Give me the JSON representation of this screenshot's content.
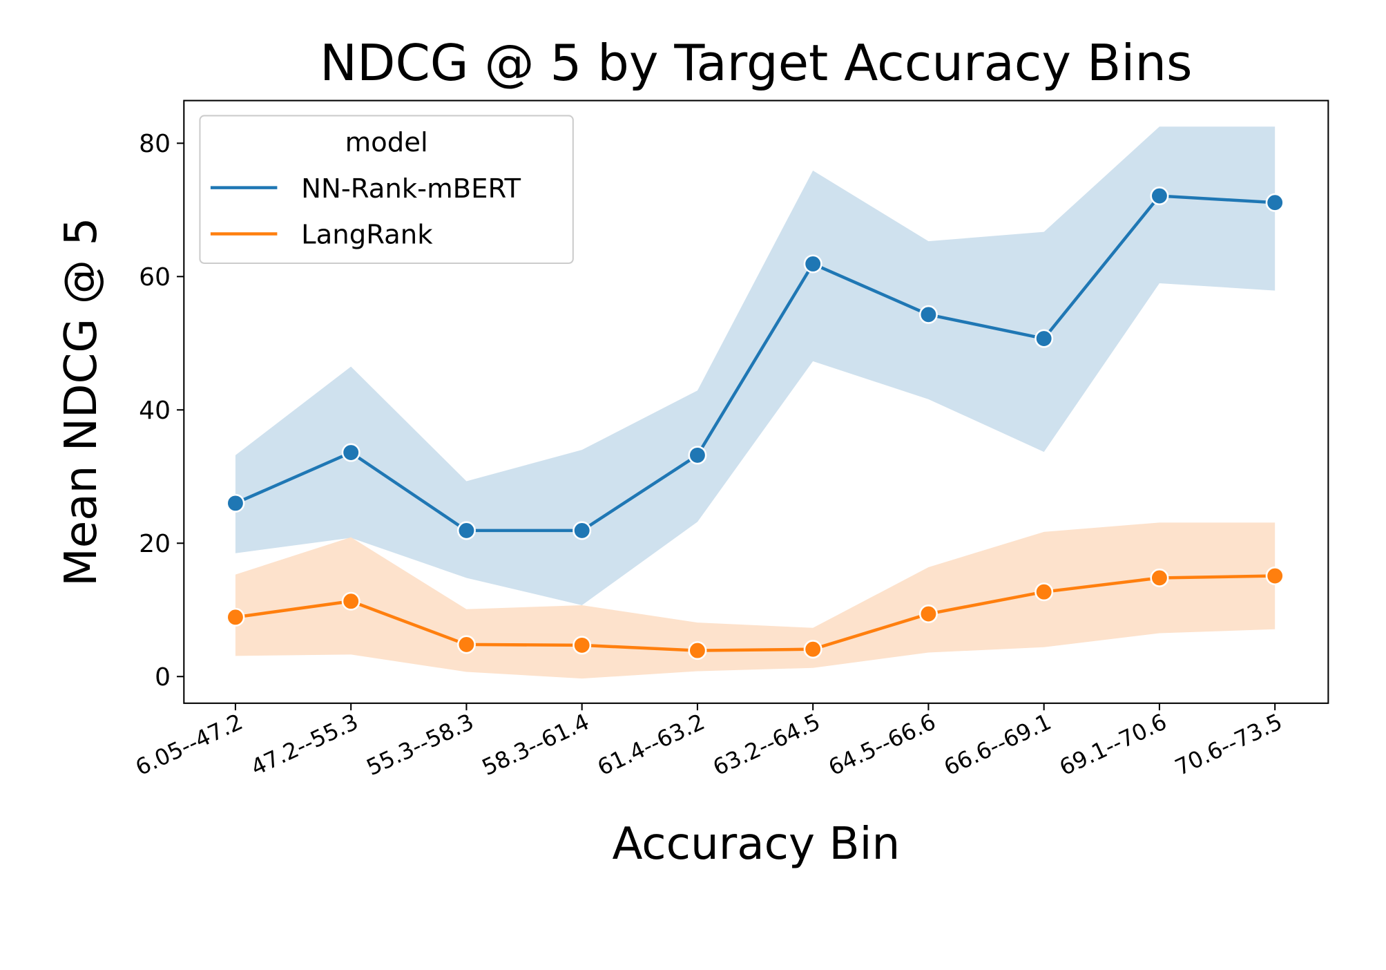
{
  "chart_data": {
    "type": "line",
    "title": "NDCG @ 5 by Target Accuracy Bins",
    "xlabel": "Accuracy Bin",
    "ylabel": "Mean NDCG @ 5",
    "ylim": [
      -4,
      86
    ],
    "yticks": [
      0,
      20,
      40,
      60,
      80
    ],
    "grid": false,
    "legend": {
      "title": "model",
      "placement": "top-left"
    },
    "categories": [
      "6.05--47.2",
      "47.2--55.3",
      "55.3--58.3",
      "58.3--61.4",
      "61.4--63.2",
      "63.2--64.5",
      "64.5--66.6",
      "66.6--69.1",
      "69.1--70.6",
      "70.6--73.5"
    ],
    "series": [
      {
        "name": "NN-Rank-mBERT",
        "color": "#1f77b4",
        "band_color": "#cfe1ee",
        "values": [
          26.0,
          33.6,
          21.9,
          21.9,
          33.2,
          61.9,
          54.3,
          50.7,
          72.1,
          71.1
        ],
        "ci_upper": [
          33.2,
          46.5,
          29.3,
          34.0,
          42.9,
          75.9,
          65.3,
          66.7,
          82.5,
          82.5
        ],
        "ci_lower": [
          18.5,
          20.8,
          14.8,
          10.7,
          23.2,
          47.3,
          41.6,
          33.7,
          59.0,
          57.9
        ]
      },
      {
        "name": "LangRank",
        "color": "#ff7f0e",
        "band_color": "#fde2cc",
        "values": [
          8.9,
          11.3,
          4.8,
          4.7,
          3.9,
          4.1,
          9.4,
          12.7,
          14.8,
          15.1
        ],
        "ci_upper": [
          15.3,
          20.9,
          10.1,
          10.7,
          8.1,
          7.3,
          16.4,
          21.7,
          23.1,
          23.1
        ],
        "ci_lower": [
          3.1,
          3.3,
          0.7,
          -0.3,
          0.8,
          1.3,
          3.6,
          4.4,
          6.5,
          7.1
        ]
      }
    ]
  }
}
